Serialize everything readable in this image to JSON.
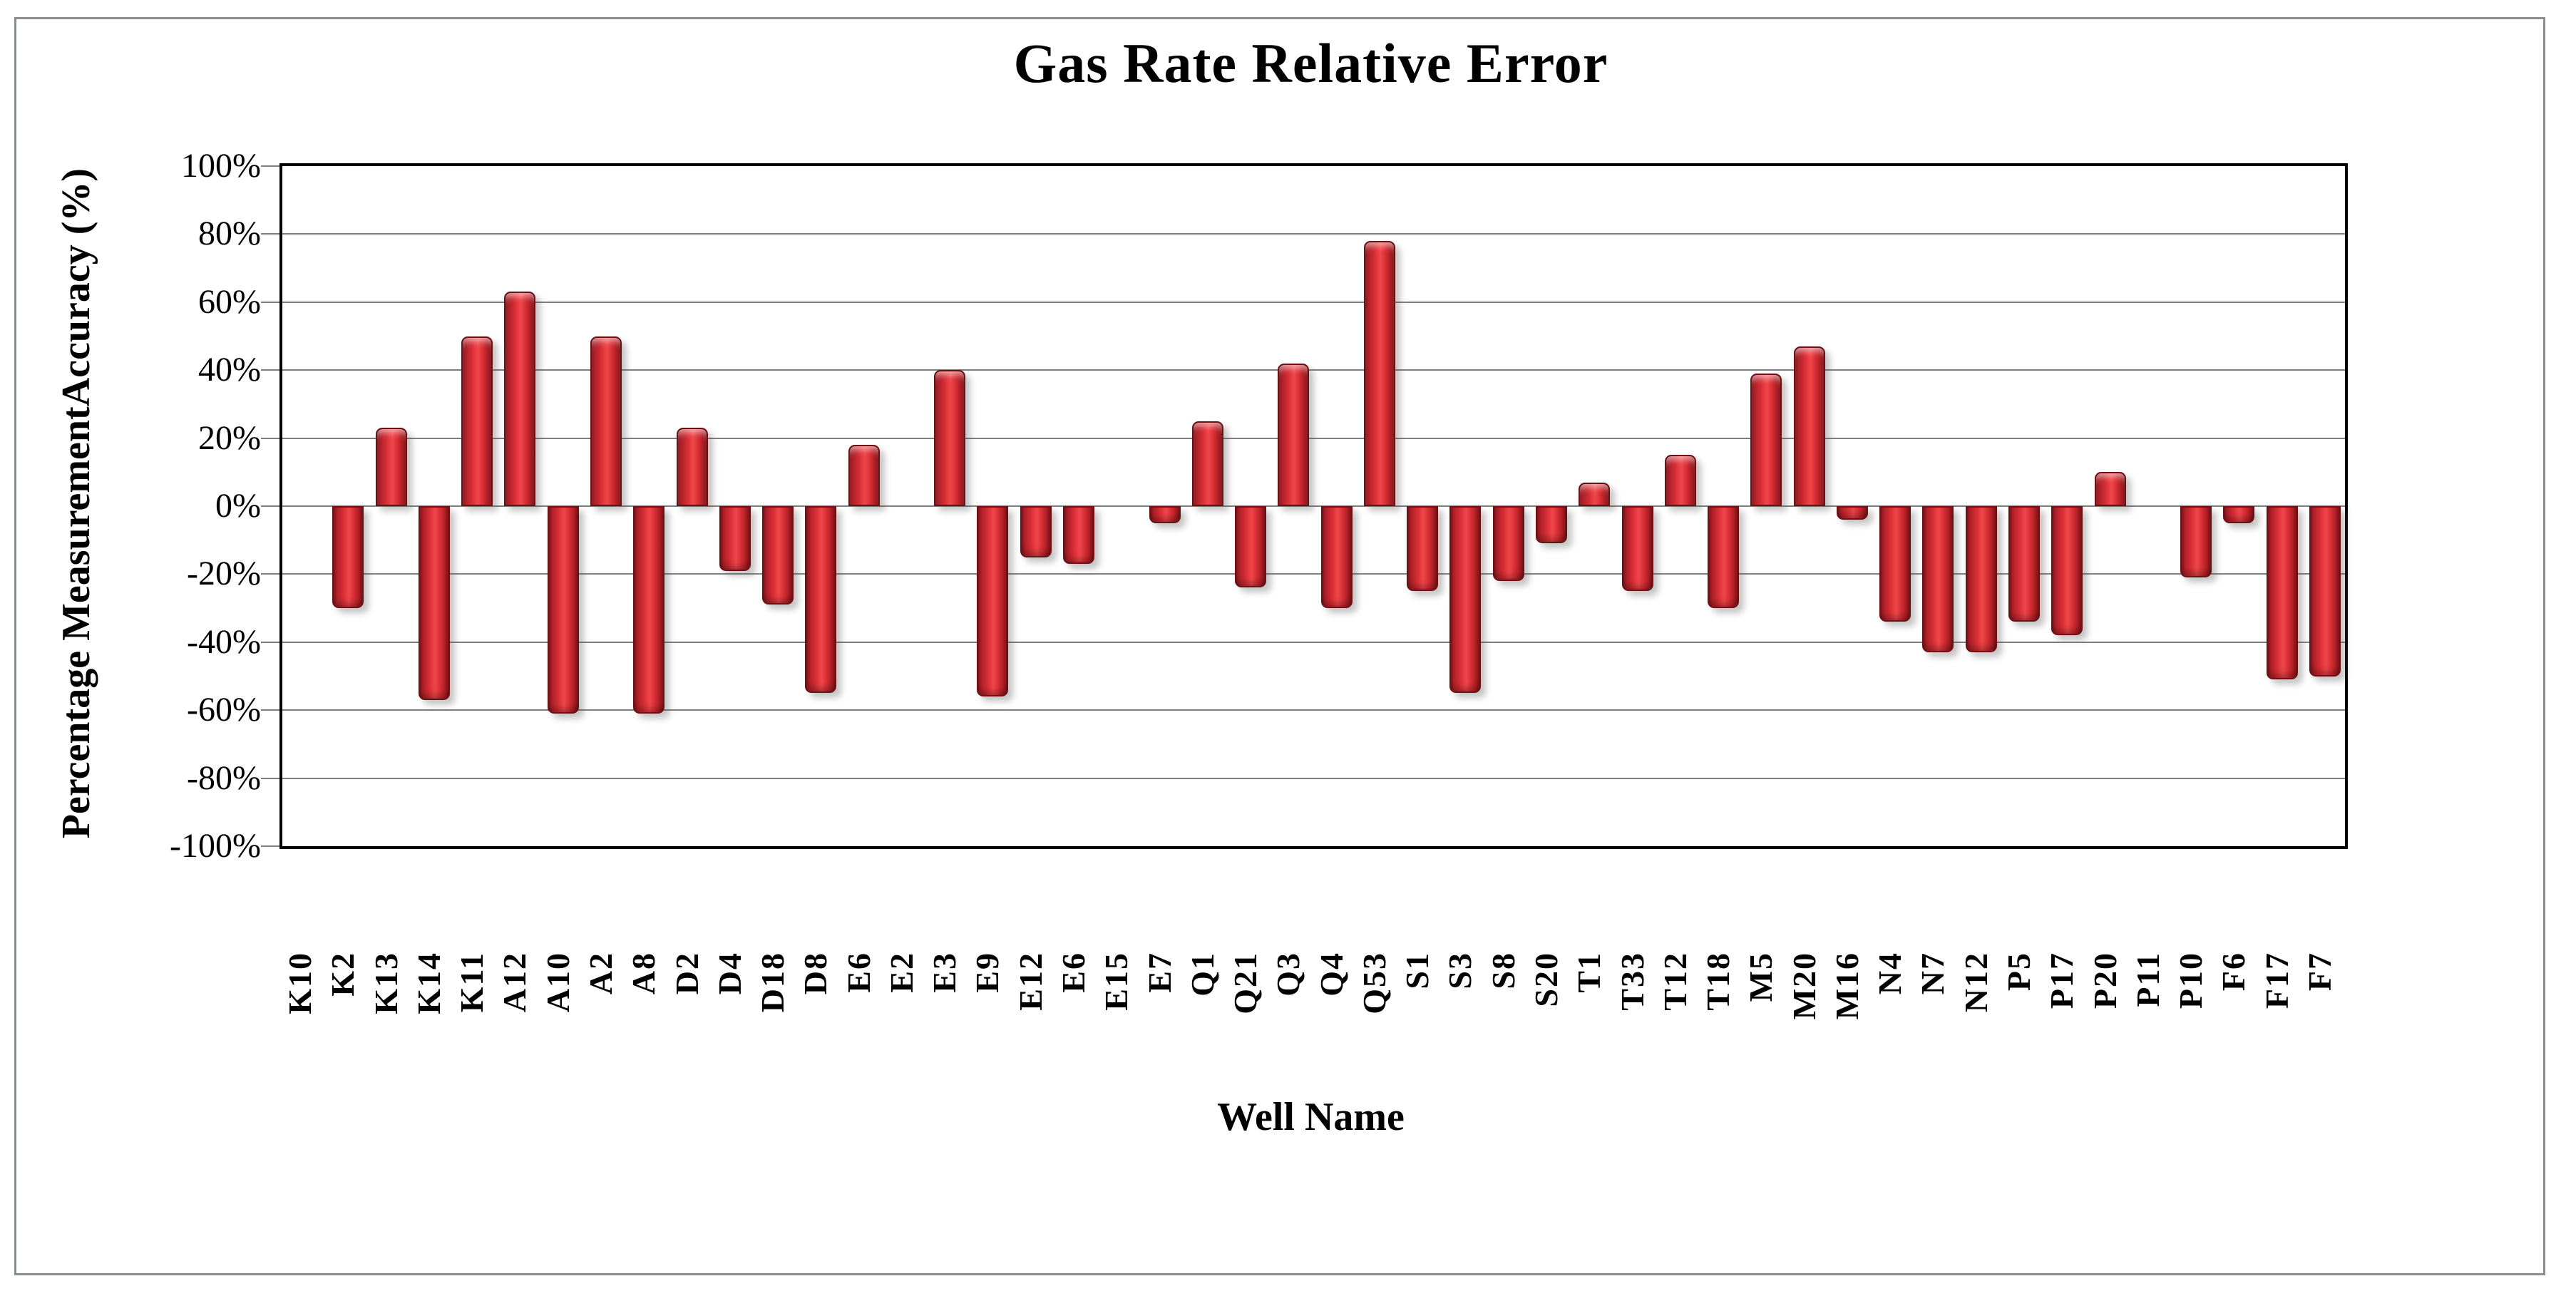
{
  "title": "Gas Rate Relative Error",
  "y_axis": {
    "title": "Percentage MeasurementAccuracy (%)"
  },
  "x_axis": {
    "title": "Well Name"
  },
  "colors": {
    "bar_main": "#d62d34",
    "bar_dark_edge": "#84151a",
    "bar_border": "#6e1114",
    "gridline": "#7f7f7f",
    "plot_border": "#000000",
    "outer_frame": "#898d90"
  },
  "chart_data": {
    "type": "bar",
    "title": "Gas Rate Relative Error",
    "xlabel": "Well Name",
    "ylabel": "Percentage MeasurementAccuracy (%)",
    "ylim": [
      -100,
      100
    ],
    "ytick_step": 20,
    "ytick_labels": [
      "100%",
      "80%",
      "60%",
      "40%",
      "20%",
      "0%",
      "-20%",
      "-40%",
      "-60%",
      "-80%",
      "-100%"
    ],
    "grid": true,
    "legend": false,
    "categories": [
      "K10",
      "K2",
      "K13",
      "K14",
      "K11",
      "A12",
      "A10",
      "A2",
      "A8",
      "D2",
      "D4",
      "D18",
      "D8",
      "E6",
      "E2",
      "E3",
      "E9",
      "E12",
      "E6",
      "E15",
      "E7",
      "Q1",
      "Q21",
      "Q3",
      "Q4",
      "Q53",
      "S1",
      "S3",
      "S8",
      "S20",
      "T1",
      "T33",
      "T12",
      "T18",
      "M5",
      "M20",
      "M16",
      "N4",
      "N7",
      "N12",
      "P5",
      "P17",
      "P20",
      "P11",
      "P10",
      "F6",
      "F17",
      "F7"
    ],
    "values": [
      0,
      -30,
      23,
      -57,
      50,
      63,
      -61,
      50,
      -61,
      23,
      -19,
      -29,
      -55,
      18,
      0,
      40,
      -56,
      -15,
      -17,
      0,
      -5,
      25,
      -24,
      42,
      -30,
      78,
      -25,
      -55,
      -22,
      -11,
      7,
      -25,
      15,
      -30,
      39,
      47,
      -4,
      -34,
      -43,
      -43,
      -34,
      -38,
      10,
      0,
      -21,
      -5,
      -51,
      -50
    ]
  }
}
